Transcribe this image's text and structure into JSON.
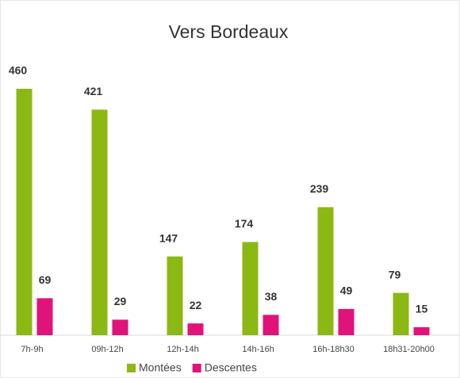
{
  "chart_data": {
    "type": "bar",
    "title": "Vers Bordeaux",
    "categories": [
      "7h-9h",
      "09h-12h",
      "12h-14h",
      "14h-16h",
      "16h-18h30",
      "18h31-20h00"
    ],
    "series": [
      {
        "name": "Montées",
        "color": "#8cb814",
        "values": [
          460,
          421,
          147,
          174,
          239,
          79
        ]
      },
      {
        "name": "Descentes",
        "color": "#e0137a",
        "values": [
          69,
          29,
          22,
          38,
          49,
          15
        ]
      }
    ],
    "legend": "bottom"
  }
}
